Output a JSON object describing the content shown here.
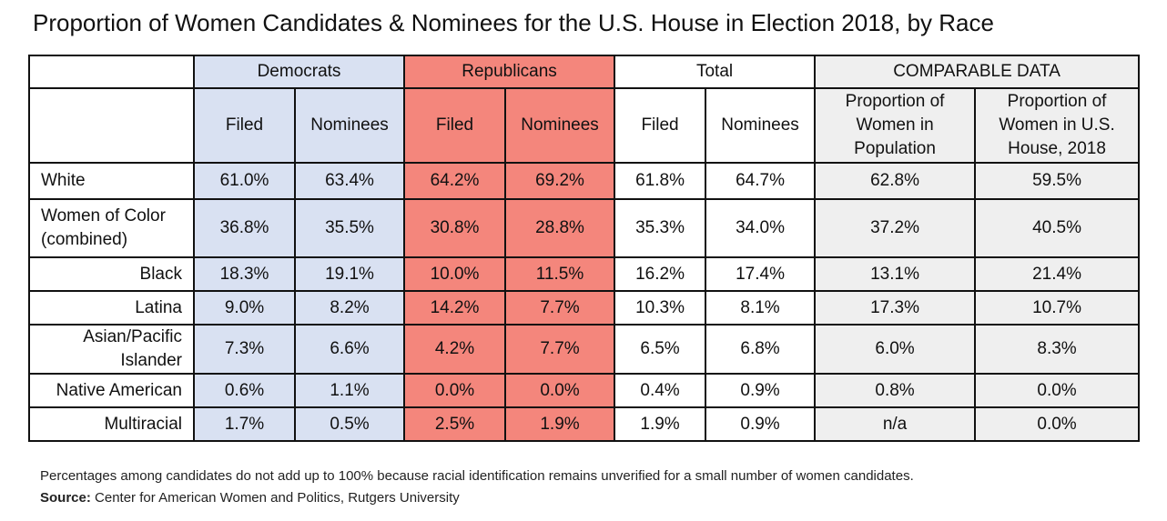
{
  "chart_data": {
    "type": "table",
    "title": "Proportion of Women Candidates & Nominees for the U.S. House in Election 2018, by Race",
    "group_headers": [
      "Democrats",
      "Republicans",
      "Total",
      "COMPARABLE DATA"
    ],
    "sub_headers": [
      "Filed",
      "Nominees",
      "Filed",
      "Nominees",
      "Filed",
      "Nominees",
      "Proportion of Women in Population",
      "Proportion of Women in U.S. House, 2018"
    ],
    "rows": [
      {
        "label": "White",
        "values": [
          "61.0%",
          "63.4%",
          "64.2%",
          "69.2%",
          "61.8%",
          "64.7%",
          "62.8%",
          "59.5%"
        ]
      },
      {
        "label": "Women of Color (combined)",
        "values": [
          "36.8%",
          "35.5%",
          "30.8%",
          "28.8%",
          "35.3%",
          "34.0%",
          "37.2%",
          "40.5%"
        ]
      },
      {
        "label": "Black",
        "values": [
          "18.3%",
          "19.1%",
          "10.0%",
          "11.5%",
          "16.2%",
          "17.4%",
          "13.1%",
          "21.4%"
        ]
      },
      {
        "label": "Latina",
        "values": [
          "9.0%",
          "8.2%",
          "14.2%",
          "7.7%",
          "10.3%",
          "8.1%",
          "17.3%",
          "10.7%"
        ]
      },
      {
        "label": "Asian/Pacific Islander",
        "values": [
          "7.3%",
          "6.6%",
          "4.2%",
          "7.7%",
          "6.5%",
          "6.8%",
          "6.0%",
          "8.3%"
        ]
      },
      {
        "label": "Native American",
        "values": [
          "0.6%",
          "1.1%",
          "0.0%",
          "0.0%",
          "0.4%",
          "0.9%",
          "0.8%",
          "0.0%"
        ]
      },
      {
        "label": "Multiracial",
        "values": [
          "1.7%",
          "0.5%",
          "2.5%",
          "1.9%",
          "1.9%",
          "0.9%",
          "n/a",
          "0.0%"
        ]
      }
    ],
    "colors": {
      "democrats": "#d9e1f2",
      "republicans": "#f4867c",
      "comparable": "#efefef"
    }
  },
  "footnote": "Percentages among candidates do not add up to 100% because racial identification remains unverified for a small number of women candidates.",
  "source_label": "Source:",
  "source_text": "Center for American Women and Politics, Rutgers University"
}
